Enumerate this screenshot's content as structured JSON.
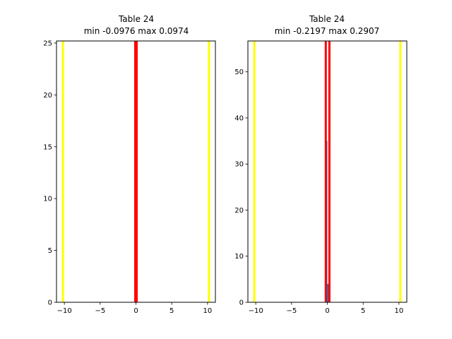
{
  "chart_data": [
    {
      "type": "histogram",
      "title": "Table 24",
      "subtitle": "min -0.0976 max 0.0974",
      "xlabel": "",
      "ylabel": "",
      "xlim": [
        -11.1,
        11.1
      ],
      "ylim": [
        0,
        25.2
      ],
      "x_ticks": [
        -10,
        -5,
        0,
        5,
        10
      ],
      "x_tick_labels": [
        "−10",
        "−5",
        "0",
        "5",
        "10"
      ],
      "y_ticks": [
        0,
        5,
        10,
        15,
        20,
        25
      ],
      "y_tick_labels": [
        "0",
        "5",
        "10",
        "15",
        "20",
        "25"
      ],
      "grid": false,
      "bars": [
        {
          "x0": -0.0976,
          "x1": 0.0974,
          "height": 24
        }
      ],
      "vlines": [
        {
          "x": -10.2,
          "color": "#ffff00"
        },
        {
          "x": 10.2,
          "color": "#ffff00"
        },
        {
          "x": -0.0976,
          "color": "#ff0000"
        },
        {
          "x": 0.0974,
          "color": "#ff0000"
        }
      ],
      "bar_color": "#1f77b4"
    },
    {
      "type": "histogram",
      "title": "Table 24",
      "subtitle": "min -0.2197 max 0.2907",
      "xlabel": "",
      "ylabel": "",
      "xlim": [
        -11.1,
        11.1
      ],
      "ylim": [
        0,
        56.7
      ],
      "x_ticks": [
        -10,
        -5,
        0,
        5,
        10
      ],
      "x_tick_labels": [
        "−10",
        "−5",
        "0",
        "5",
        "10"
      ],
      "y_ticks": [
        0,
        10,
        20,
        30,
        40,
        50
      ],
      "y_tick_labels": [
        "0",
        "10",
        "20",
        "30",
        "40",
        "50"
      ],
      "grid": false,
      "bars": [
        {
          "x0": -0.2197,
          "x1": -0.0,
          "height": 35
        },
        {
          "x0": 0.0,
          "x1": 0.29,
          "height": 4
        }
      ],
      "vlines": [
        {
          "x": -10.2,
          "color": "#ffff00"
        },
        {
          "x": 10.2,
          "color": "#ffff00"
        },
        {
          "x": -0.2197,
          "color": "#ff0000"
        },
        {
          "x": 0.2907,
          "color": "#ff0000"
        }
      ],
      "bar_color": "#1f77b4"
    }
  ]
}
